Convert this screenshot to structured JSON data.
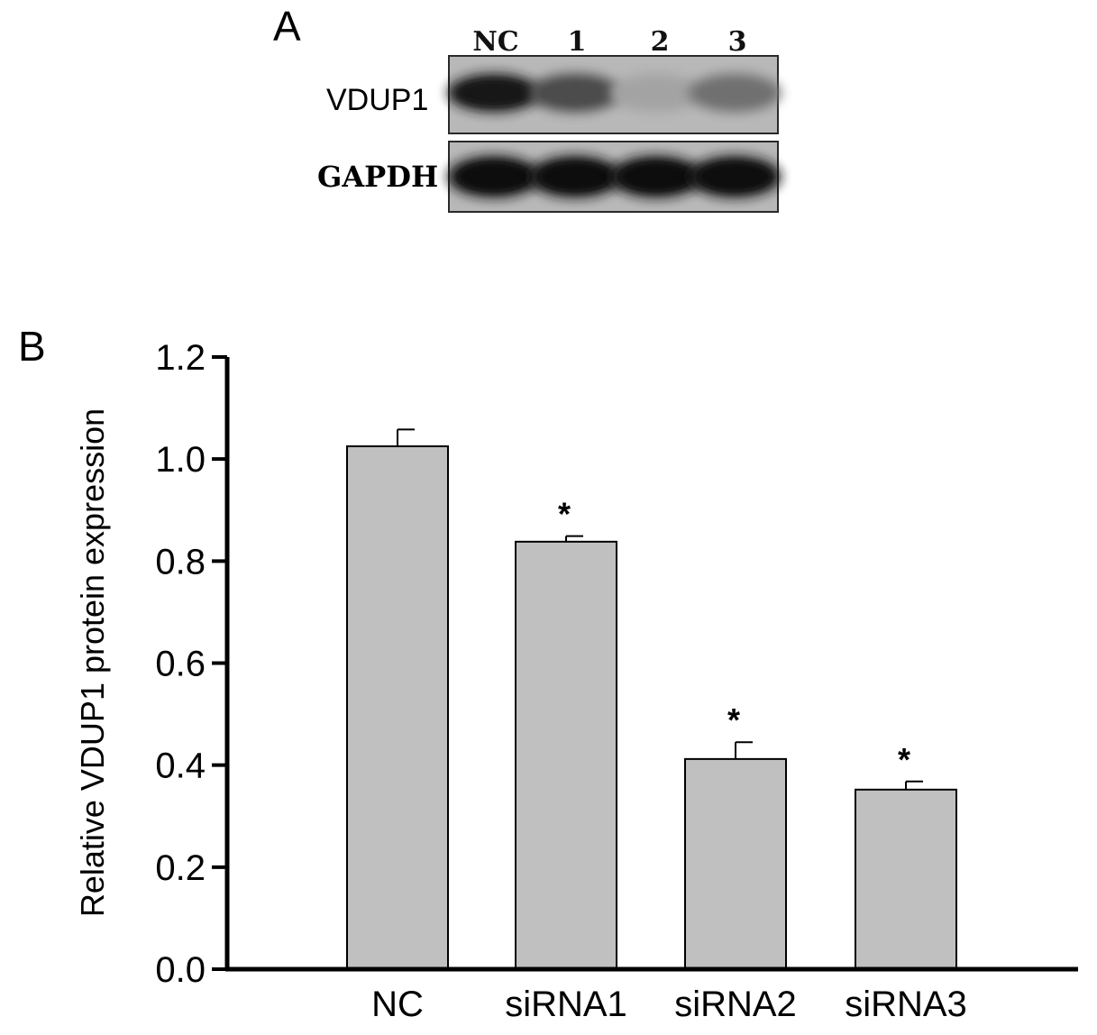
{
  "panel_a": {
    "letter": "A",
    "lanes": [
      "NC",
      "1",
      "2",
      "3"
    ],
    "proteins": [
      "VDUP1",
      "GAPDH"
    ],
    "blot_intensity": {
      "VDUP1": [
        0.9,
        0.6,
        0.12,
        0.4
      ],
      "GAPDH": [
        0.95,
        0.95,
        0.95,
        0.92
      ]
    }
  },
  "panel_b": {
    "letter": "B"
  },
  "chart_data": {
    "type": "bar",
    "categories": [
      "NC",
      "siRNA1",
      "siRNA2",
      "siRNA3"
    ],
    "values": [
      1.025,
      0.838,
      0.412,
      0.352
    ],
    "errors": [
      0.033,
      0.011,
      0.033,
      0.016
    ],
    "significance": [
      "",
      "*",
      "*",
      "*"
    ],
    "ylabel": "Relative VDUP1 protein expression",
    "ylim": [
      0,
      1.2
    ],
    "yticks": [
      "0.0",
      "0.2",
      "0.4",
      "0.6",
      "0.8",
      "1.0",
      "1.2"
    ],
    "bar_color": "#c0c0c0",
    "grid": false
  }
}
